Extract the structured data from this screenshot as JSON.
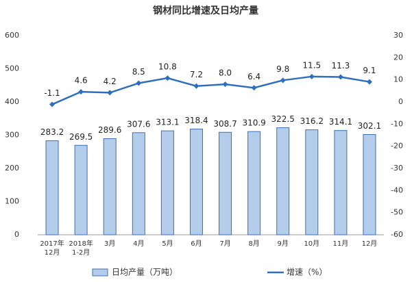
{
  "chart_data": {
    "type": "bar-line",
    "title": "钢材同比增速及日均产量",
    "categories": [
      "2017年\n12月",
      "2018年\n1-2月",
      "3月",
      "4月",
      "5月",
      "6月",
      "7月",
      "8月",
      "9月",
      "10月",
      "11月",
      "12月"
    ],
    "series": [
      {
        "name": "日均产量（万吨）",
        "type": "bar",
        "color": "#b4cdea",
        "border": "#3a6fb5",
        "values": [
          283.2,
          269.5,
          289.6,
          307.6,
          313.1,
          318.4,
          308.7,
          310.9,
          322.5,
          316.2,
          314.1,
          302.1
        ]
      },
      {
        "name": "增速（%）",
        "type": "line",
        "axis": "y2",
        "color": "#2e6fbd",
        "values": [
          -1.1,
          4.6,
          4.2,
          8.5,
          10.8,
          7.2,
          8.0,
          6.4,
          9.8,
          11.5,
          11.3,
          9.1
        ],
        "value_labels": [
          "-1.1",
          "4.6",
          "4.2",
          "8.5",
          "10.8",
          "7.2",
          "8.0",
          "6.4",
          "9.8",
          "11.5",
          "11.3",
          "9.1"
        ]
      }
    ],
    "ylim": [
      0,
      600
    ],
    "yticks": [
      0,
      100,
      200,
      300,
      400,
      500,
      600
    ],
    "y2lim": [
      -60,
      30
    ],
    "y2ticks": [
      -60,
      -50,
      -40,
      -30,
      -20,
      -10,
      0,
      10,
      20,
      30
    ],
    "grid": false,
    "legend": "bottom"
  }
}
